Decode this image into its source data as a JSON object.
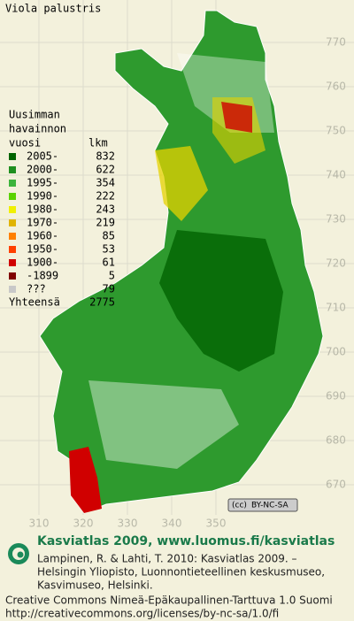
{
  "title": "Viola palustris",
  "legend": {
    "heading": [
      "Uusimman",
      "havainnon"
    ],
    "year_header": "vuosi",
    "count_header": "lkm",
    "rows": [
      {
        "color": "#006400",
        "label": "2005-",
        "count": 832
      },
      {
        "color": "#1f8f1f",
        "label": "2000-",
        "count": 622
      },
      {
        "color": "#3cb43c",
        "label": "1995-",
        "count": 354
      },
      {
        "color": "#5ad200",
        "label": "1990-",
        "count": 222
      },
      {
        "color": "#f0f000",
        "label": "1980-",
        "count": 243
      },
      {
        "color": "#e0b400",
        "label": "1970-",
        "count": 219
      },
      {
        "color": "#ff8000",
        "label": "1960-",
        "count": 85
      },
      {
        "color": "#ff4000",
        "label": "1950-",
        "count": 53
      },
      {
        "color": "#d00000",
        "label": "1900-",
        "count": 61
      },
      {
        "color": "#800000",
        "label": "-1899",
        "count": 5
      },
      {
        "color": "#c8c8c8",
        "label": "???",
        "count": 79
      }
    ],
    "total_label": "Yhteensä",
    "total": 2775
  },
  "grid": {
    "north_labels": [
      770,
      760,
      750,
      740,
      730,
      720,
      710,
      700,
      690,
      680,
      670
    ],
    "east_labels": [
      310,
      320,
      330,
      340,
      350
    ]
  },
  "badge": "BY-NC-SA",
  "footer": {
    "site": "Kasviatlas 2009, www.luomus.fi/kasviatlas",
    "citation": [
      "Lampinen, R. & Lahti, T. 2010: Kasviatlas 2009. –",
      "Helsingin Yliopisto, Luonnontieteellinen keskusmuseo,",
      "Kasvimuseo, Helsinki."
    ],
    "license": [
      "Creative Commons Nimeä-Epäkaupallinen-Tarttuva 1.0 Suomi",
      "http://creativecommons.org/licenses/by-nc-sa/1.0/fi"
    ]
  }
}
